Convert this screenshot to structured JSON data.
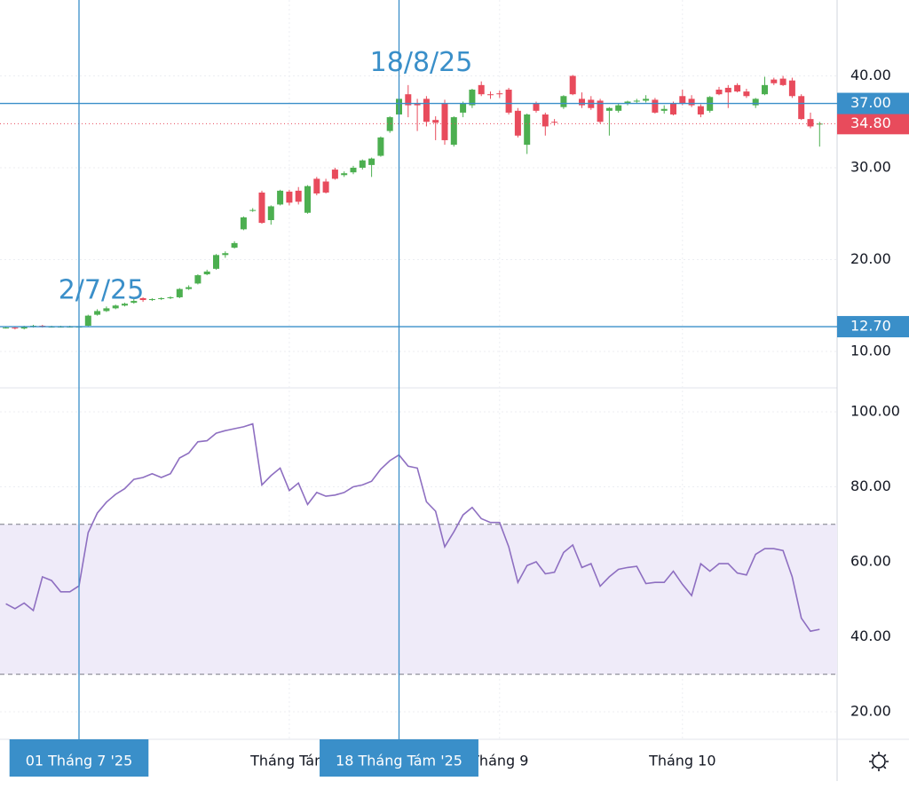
{
  "chart_data": [
    {
      "type": "candlestick",
      "categories": [
        null,
        null,
        null,
        null,
        null,
        null,
        null,
        null,
        "01 Tháng 7 '25",
        null,
        null,
        null,
        null,
        null,
        null,
        null,
        null,
        null,
        null,
        null,
        null,
        null,
        null,
        null,
        null,
        null,
        null,
        null,
        null,
        null,
        null,
        "Tháng Tám",
        null,
        null,
        null,
        null,
        null,
        null,
        null,
        null,
        null,
        null,
        null,
        "18 Tháng Tám '25",
        null,
        null,
        null,
        null,
        null,
        null,
        null,
        null,
        null,
        null,
        "Tháng 9",
        null,
        null,
        null,
        null,
        null,
        null,
        null,
        null,
        null,
        null,
        null,
        null,
        null,
        null,
        null,
        null,
        null,
        null,
        null,
        "Tháng 10",
        null,
        null,
        null,
        null,
        null,
        null,
        null,
        null,
        null,
        null,
        null,
        null,
        null,
        null,
        null
      ],
      "open": [
        12.6,
        12.6,
        12.5,
        12.7,
        12.8,
        12.7,
        12.7,
        12.7,
        12.7,
        12.8,
        14.0,
        14.4,
        14.7,
        15.0,
        15.3,
        15.8,
        15.6,
        15.7,
        15.8,
        15.9,
        16.8,
        17.4,
        18.4,
        19.0,
        20.5,
        21.3,
        23.3,
        25.3,
        27.3,
        24.3,
        26.0,
        27.4,
        27.5,
        25.1,
        28.8,
        28.5,
        29.8,
        29.2,
        29.5,
        30.0,
        30.3,
        31.3,
        34.0,
        35.8,
        38.0,
        37.0,
        37.5,
        35.2,
        37.0,
        32.5,
        36.0,
        36.8,
        39.0,
        38.0,
        38.1,
        38.5,
        36.2,
        32.5,
        37.0,
        35.8,
        35.0,
        36.6,
        40.0,
        37.5,
        37.4,
        37.3,
        36.2,
        36.2,
        37.0,
        37.2,
        37.3,
        37.4,
        36.2,
        37.0,
        37.8,
        37.5,
        36.7,
        36.2,
        38.5,
        38.7,
        39.0,
        38.3,
        36.8,
        38.0,
        39.6,
        39.7,
        39.5,
        37.8,
        35.3,
        34.8
      ],
      "high": [
        12.7,
        12.7,
        12.8,
        12.9,
        12.9,
        12.8,
        12.8,
        12.8,
        12.8,
        14.0,
        14.6,
        14.9,
        15.1,
        15.3,
        15.7,
        15.9,
        15.8,
        15.9,
        16.0,
        16.9,
        17.2,
        18.4,
        18.9,
        20.6,
        20.9,
        22.0,
        24.7,
        25.6,
        27.5,
        25.9,
        27.6,
        27.6,
        27.9,
        28.1,
        29.0,
        28.8,
        30.0,
        29.6,
        30.2,
        30.9,
        31.1,
        33.4,
        35.6,
        37.6,
        39.0,
        37.5,
        37.8,
        35.6,
        37.4,
        35.6,
        37.2,
        38.6,
        39.4,
        38.3,
        38.4,
        38.7,
        36.5,
        35.9,
        37.2,
        36.0,
        35.3,
        37.9,
        40.1,
        38.2,
        37.8,
        37.5,
        36.6,
        37.0,
        37.3,
        37.5,
        37.9,
        37.6,
        36.8,
        37.2,
        38.5,
        37.9,
        36.9,
        37.8,
        38.8,
        39.0,
        39.2,
        38.6,
        37.6,
        39.9,
        39.8,
        40.0,
        39.8,
        38.0,
        36.0,
        35.0
      ],
      "low": [
        12.5,
        12.4,
        12.4,
        12.6,
        12.6,
        12.6,
        12.6,
        12.6,
        12.6,
        12.7,
        13.9,
        14.3,
        14.6,
        14.9,
        15.2,
        15.4,
        15.5,
        15.6,
        15.7,
        15.8,
        16.7,
        17.3,
        18.3,
        18.9,
        20.2,
        21.2,
        23.2,
        25.2,
        23.9,
        23.8,
        25.9,
        25.9,
        26.0,
        25.0,
        27.0,
        27.2,
        28.7,
        29.0,
        29.3,
        29.8,
        29.0,
        31.2,
        33.8,
        35.7,
        35.5,
        34.0,
        34.5,
        33.0,
        32.5,
        32.3,
        35.5,
        36.5,
        37.8,
        37.5,
        37.6,
        35.8,
        33.3,
        31.5,
        36.0,
        33.5,
        34.6,
        36.4,
        37.9,
        36.5,
        36.3,
        34.8,
        33.5,
        36.0,
        36.8,
        37.0,
        37.1,
        35.9,
        35.9,
        35.7,
        36.8,
        36.6,
        35.5,
        36.0,
        37.9,
        36.5,
        38.2,
        37.6,
        36.5,
        37.9,
        39.0,
        38.9,
        37.6,
        35.2,
        34.3,
        32.3
      ],
      "close": [
        12.6,
        12.5,
        12.7,
        12.8,
        12.7,
        12.7,
        12.7,
        12.7,
        12.7,
        13.9,
        14.4,
        14.7,
        15.0,
        15.2,
        15.5,
        15.6,
        15.7,
        15.8,
        15.9,
        16.8,
        17.0,
        18.3,
        18.7,
        20.5,
        20.7,
        21.8,
        24.6,
        25.4,
        24.0,
        25.8,
        27.5,
        26.2,
        26.3,
        28.0,
        27.2,
        27.3,
        28.8,
        29.4,
        30.0,
        30.8,
        31.0,
        33.3,
        35.5,
        37.5,
        36.8,
        36.8,
        35.0,
        34.9,
        33.0,
        35.5,
        37.0,
        38.5,
        38.0,
        37.9,
        38.0,
        36.0,
        33.5,
        35.8,
        36.2,
        34.5,
        34.9,
        37.8,
        38.0,
        36.8,
        36.5,
        35.0,
        36.5,
        36.8,
        37.2,
        37.3,
        37.5,
        36.0,
        36.4,
        35.8,
        37.0,
        36.8,
        35.8,
        37.7,
        38.0,
        38.2,
        38.3,
        37.8,
        37.5,
        39.0,
        39.2,
        39.0,
        37.8,
        35.3,
        34.5,
        34.8
      ],
      "up_color": "#4caf50",
      "down_color": "#e84b5c",
      "ylim": [
        6.04,
        48.26
      ],
      "yticks": [
        {
          "value": 10,
          "label": "10.00"
        },
        {
          "value": 20,
          "label": "20.00"
        },
        {
          "value": 30,
          "label": "30.00"
        },
        {
          "value": 40,
          "label": "40.00"
        }
      ],
      "grid": true,
      "line_color": "#3a8fc9",
      "hlines": [
        {
          "value": 37,
          "label": "37.00"
        },
        {
          "value": 12.7,
          "label": "12.70"
        }
      ],
      "last_price": {
        "value": 34.8,
        "label": "34.80",
        "color": "#e84b5c"
      },
      "markers": [
        {
          "category": "01 Tháng 7 '25",
          "text": "2/7/25"
        },
        {
          "category": "18 Tháng Tám '25",
          "text": "18/8/25"
        }
      ]
    },
    {
      "type": "line",
      "values": [
        48.8,
        47.5,
        49,
        47,
        56,
        55,
        52,
        52,
        53.6,
        67.8,
        73,
        75.9,
        78,
        79.5,
        82,
        82.5,
        83.5,
        82.5,
        83.5,
        87.7,
        89,
        92,
        92.3,
        94.3,
        95,
        95.5,
        96,
        96.8,
        80.5,
        83,
        85,
        79,
        81,
        75.3,
        78.5,
        77.5,
        77.8,
        78.5,
        80,
        80.5,
        81.5,
        84.7,
        87,
        88.5,
        85.5,
        85,
        76,
        73.5,
        64,
        68,
        72.5,
        74.5,
        71.5,
        70.5,
        70.5,
        64,
        54.5,
        59,
        60,
        56.8,
        57.2,
        62.5,
        64.5,
        58.5,
        59.5,
        53.5,
        56,
        58,
        58.5,
        58.8,
        54.2,
        54.5,
        54.5,
        57.5,
        54,
        51,
        59.5,
        57.5,
        59.5,
        59.5,
        57,
        56.5,
        62,
        63.5,
        63.5,
        63,
        56,
        45,
        41.5,
        42
      ],
      "color": "#8e6fc1",
      "ylim": [
        12.66,
        106.4
      ],
      "yticks": [
        {
          "value": 20,
          "label": "20.00"
        },
        {
          "value": 40,
          "label": "40.00"
        },
        {
          "value": 60,
          "label": "60.00"
        },
        {
          "value": 80,
          "label": "80.00"
        },
        {
          "value": 100,
          "label": "100.00"
        }
      ],
      "grid": true,
      "band": [
        30,
        70
      ],
      "band_color": "#efebf9"
    }
  ]
}
